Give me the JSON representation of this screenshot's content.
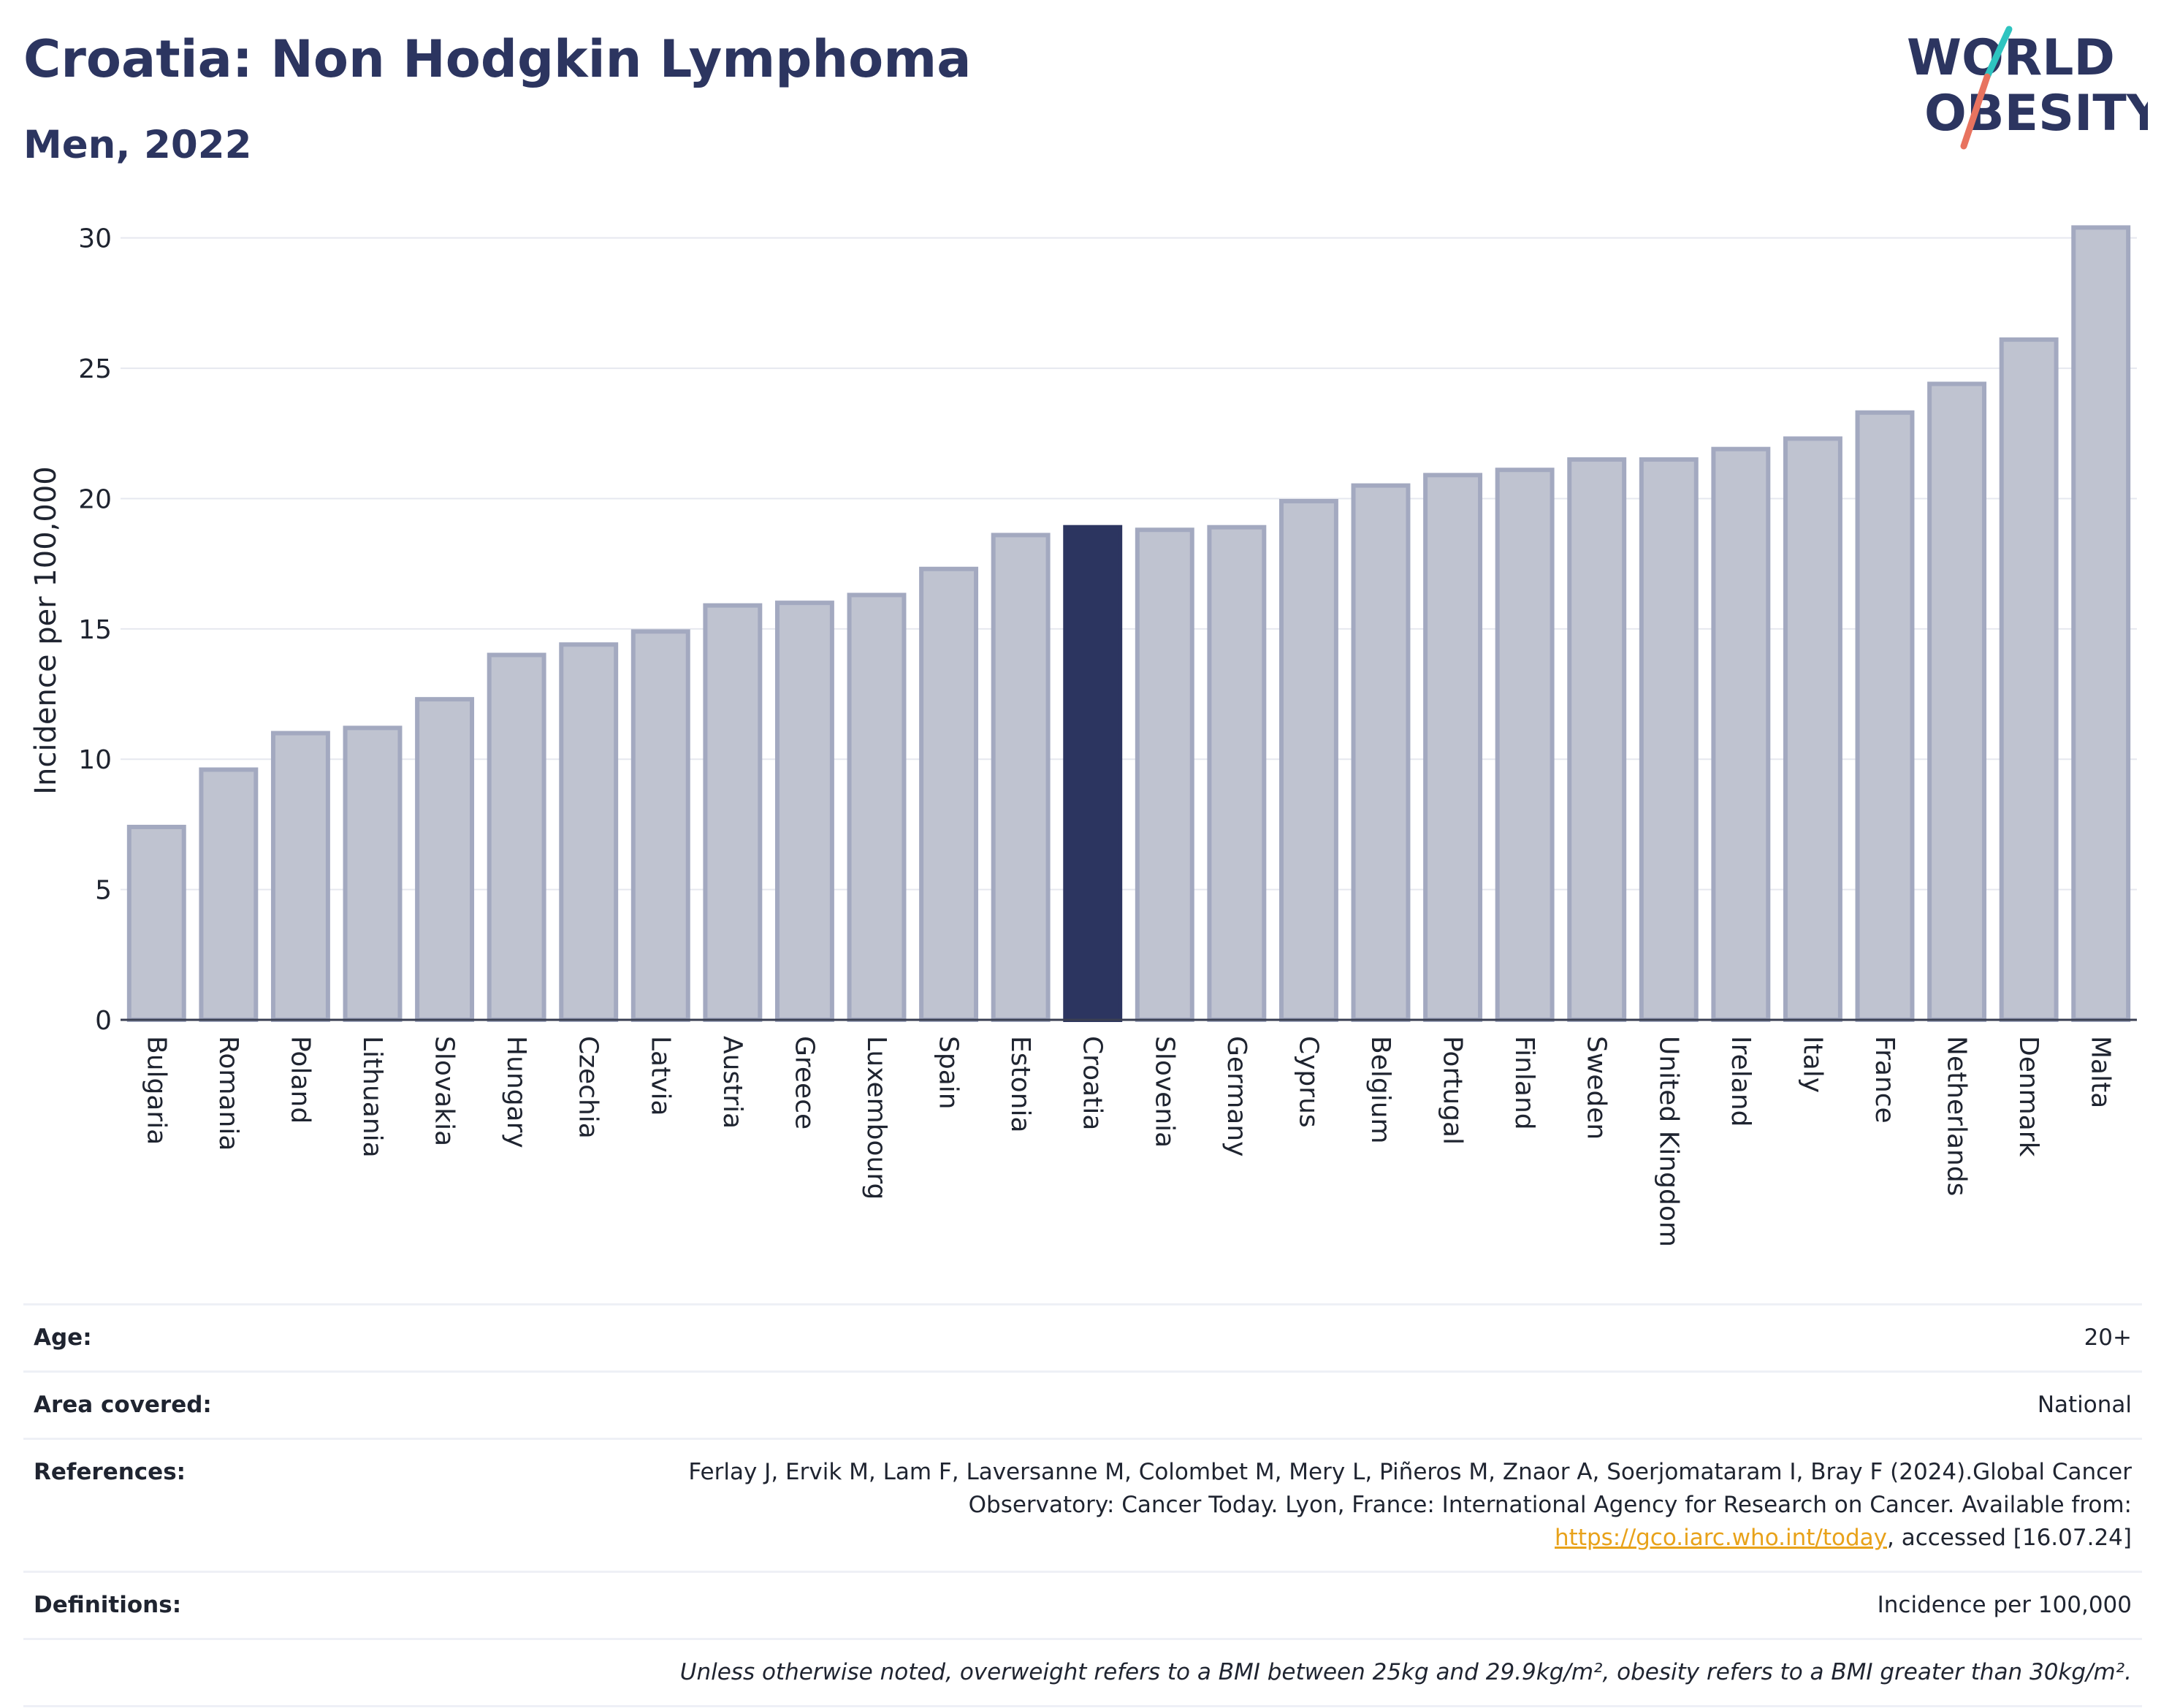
{
  "header": {
    "title": "Croatia: Non Hodgkin Lymphoma",
    "subtitle": "Men, 2022"
  },
  "logo": {
    "line1": "WORLD",
    "line2": "OBESITY"
  },
  "colors": {
    "bar_default_fill": "#bfc3d0",
    "bar_default_stroke": "#a3a9c0",
    "bar_highlight": "#2c3560",
    "title": "#2c3560",
    "logo_teal": "#2ec4c0",
    "logo_coral": "#e8735f",
    "link": "#e8a21a"
  },
  "chart_data": {
    "type": "bar",
    "title": "Croatia: Non Hodgkin Lymphoma",
    "subtitle": "Men, 2022",
    "ylabel": "Incidence per 100,000",
    "xlabel": "",
    "ylim": [
      0,
      31
    ],
    "yticks": [
      0,
      5,
      10,
      15,
      20,
      25,
      30
    ],
    "grid": true,
    "highlight": "Croatia",
    "categories": [
      "Bulgaria",
      "Romania",
      "Poland",
      "Lithuania",
      "Slovakia",
      "Hungary",
      "Czechia",
      "Latvia",
      "Austria",
      "Greece",
      "Luxembourg",
      "Spain",
      "Estonia",
      "Croatia",
      "Slovenia",
      "Germany",
      "Cyprus",
      "Belgium",
      "Portugal",
      "Finland",
      "Sweden",
      "United Kingdom",
      "Ireland",
      "Italy",
      "France",
      "Netherlands",
      "Denmark",
      "Malta"
    ],
    "values": [
      7.4,
      9.6,
      11.0,
      11.2,
      12.3,
      14.0,
      14.4,
      14.9,
      15.9,
      16.0,
      16.3,
      17.3,
      18.6,
      18.9,
      18.8,
      18.9,
      19.9,
      20.5,
      20.9,
      21.1,
      21.5,
      21.5,
      21.9,
      22.3,
      23.3,
      24.4,
      26.1,
      30.4
    ]
  },
  "info": {
    "age_label": "Age:",
    "age_value": "20+",
    "area_label": "Area covered:",
    "area_value": "National",
    "references_label": "References:",
    "references_text": "Ferlay J, Ervik M, Lam F, Laversanne M, Colombet M, Mery L, Piñeros M, Znaor A, Soerjomataram I, Bray F (2024).Global Cancer Observatory: Cancer Today. Lyon, France: International Agency for Research on Cancer. Available from: ",
    "references_link": "https://gco.iarc.who.int/today",
    "references_suffix": ", accessed [16.07.24]",
    "definitions_label": "Definitions:",
    "definitions_value": "Incidence per 100,000",
    "note": "Unless otherwise noted, overweight refers to a BMI between 25kg and 29.9kg/m², obesity refers to a BMI greater than 30kg/m²."
  }
}
